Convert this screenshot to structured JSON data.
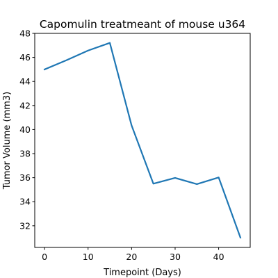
{
  "chart_data": {
    "type": "line",
    "title": "Capomulin treatmeant of mouse u364",
    "xlabel": "Timepoint (Days)",
    "ylabel": "Tumor Volume (mm3)",
    "xlim": [
      -2.25,
      47.25
    ],
    "ylim": [
      30.2,
      48.0
    ],
    "xticks": [
      0,
      10,
      20,
      30,
      40
    ],
    "yticks": [
      32,
      34,
      36,
      38,
      40,
      42,
      44,
      46,
      48
    ],
    "grid": false,
    "series": [
      {
        "color": "#1f77b4",
        "x": [
          0,
          5,
          10,
          15,
          20,
          25,
          30,
          35,
          40,
          45
        ],
        "values": [
          45.0,
          45.76,
          46.57,
          47.21,
          40.34,
          35.5,
          35.98,
          35.46,
          36.02,
          31.02
        ]
      }
    ]
  }
}
